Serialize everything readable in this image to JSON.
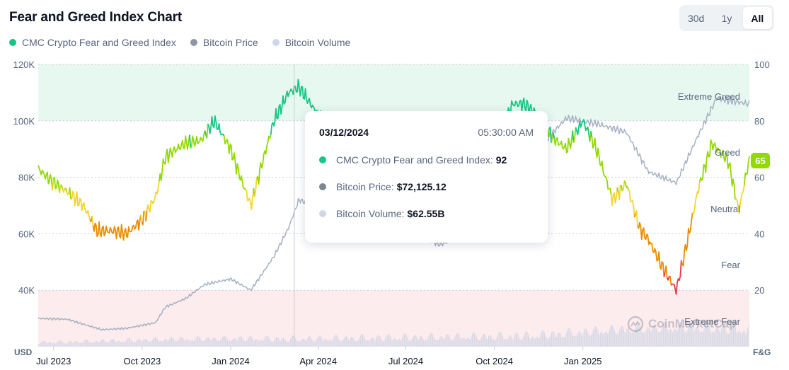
{
  "title": "Fear and Greed Index Chart",
  "range_toggle": {
    "options": [
      "30d",
      "1y",
      "All"
    ],
    "selected": "All"
  },
  "legend": [
    {
      "label": "CMC Crypto Fear and Greed Index",
      "color": "#16c784"
    },
    {
      "label": "Bitcoin Price",
      "color": "#8e96a3"
    },
    {
      "label": "Bitcoin Volume",
      "color": "#cfd6e4"
    }
  ],
  "chart_data": {
    "type": "line",
    "left_axis": {
      "title": "USD",
      "ticks": [
        "40K",
        "60K",
        "80K",
        "100K",
        "120K"
      ],
      "tick_values": [
        40000,
        60000,
        80000,
        100000,
        120000
      ],
      "range": [
        20000,
        120000
      ]
    },
    "right_axis": {
      "title": "F&G",
      "ticks": [
        "20",
        "40",
        "60",
        "80",
        "100"
      ],
      "tick_values": [
        20,
        40,
        60,
        80,
        100
      ],
      "range": [
        0,
        100
      ]
    },
    "x_ticks": [
      "Jul 2023",
      "Oct 2023",
      "Jan 2024",
      "Apr 2024",
      "Jul 2024",
      "Oct 2024",
      "Jan 2025"
    ],
    "zones": [
      "Extreme Greed",
      "Greed",
      "Neutral",
      "Fear",
      "Extreme Fear"
    ],
    "fear_greed_series": {
      "name": "CMC Crypto Fear and Greed Index",
      "dates": [
        "2023-06-15",
        "2023-07-01",
        "2023-07-15",
        "2023-08-01",
        "2023-08-15",
        "2023-09-01",
        "2023-09-15",
        "2023-10-01",
        "2023-10-15",
        "2023-10-25",
        "2023-11-01",
        "2023-11-15",
        "2023-12-01",
        "2023-12-15",
        "2024-01-01",
        "2024-01-10",
        "2024-01-22",
        "2024-02-01",
        "2024-02-15",
        "2024-03-01",
        "2024-03-12",
        "2024-04-01",
        "2024-05-15",
        "2024-06-15",
        "2024-07-05",
        "2024-07-20",
        "2024-08-05",
        "2024-08-20",
        "2024-09-05",
        "2024-09-20",
        "2024-10-05",
        "2024-10-20",
        "2024-11-01",
        "2024-11-15",
        "2024-12-01",
        "2024-12-15",
        "2025-01-01",
        "2025-01-15",
        "2025-02-01",
        "2025-02-15",
        "2025-03-01",
        "2025-03-10",
        "2025-03-25",
        "2025-04-08",
        "2025-04-20",
        "2025-05-01",
        "2025-05-15",
        "2025-06-01",
        "2025-06-12",
        "2025-06-22"
      ],
      "values": [
        63,
        58,
        55,
        50,
        41,
        41,
        40,
        45,
        53,
        67,
        69,
        72,
        73,
        80,
        70,
        61,
        50,
        63,
        80,
        90,
        92,
        82,
        72,
        70,
        62,
        55,
        38,
        45,
        40,
        55,
        75,
        86,
        86,
        82,
        74,
        70,
        80,
        70,
        52,
        58,
        42,
        38,
        28,
        20,
        38,
        56,
        72,
        66,
        48,
        65
      ]
    },
    "price_series": {
      "name": "Bitcoin Price",
      "dates": [
        "2023-06-15",
        "2023-07-15",
        "2023-08-20",
        "2023-09-15",
        "2023-10-15",
        "2023-10-25",
        "2023-11-15",
        "2023-12-05",
        "2024-01-01",
        "2024-01-22",
        "2024-02-15",
        "2024-03-01",
        "2024-03-12",
        "2024-04-01",
        "2024-06-01",
        "2024-08-05",
        "2024-10-01",
        "2024-11-01",
        "2024-11-15",
        "2024-12-15",
        "2025-01-15",
        "2025-02-15",
        "2025-03-10",
        "2025-04-08",
        "2025-05-01",
        "2025-05-20",
        "2025-06-22"
      ],
      "values": [
        30000,
        29700,
        26000,
        26500,
        28500,
        34000,
        37000,
        42000,
        44000,
        40000,
        52000,
        62000,
        72125,
        69000,
        67000,
        56000,
        63000,
        70000,
        90000,
        101000,
        99000,
        96000,
        82000,
        78000,
        95000,
        108000,
        106000
      ]
    },
    "highlight": {
      "date": "03/12/2024",
      "time": "05:30:00 AM",
      "fear_greed": 92,
      "price": "$72,125.12",
      "volume": "$62.55B"
    },
    "current_fear_greed": 65,
    "grid": true
  },
  "tooltip": {
    "date": "03/12/2024",
    "time": "05:30:00 AM",
    "rows": [
      {
        "label": "CMC Crypto Fear and Greed Index:",
        "value": "92",
        "color": "#16c784"
      },
      {
        "label": "Bitcoin Price:",
        "value": "$72,125.12",
        "color": "#7c8594"
      },
      {
        "label": "Bitcoin Volume:",
        "value": "$62.55B",
        "color": "#cfd6e4"
      }
    ]
  },
  "current_badge": "65",
  "watermark": "CoinMarketCap",
  "colors": {
    "extreme_greed": "#16c784",
    "greed": "#93d900",
    "neutral": "#f3d42f",
    "fear": "#ea8c00",
    "extreme_fear": "#ea3943",
    "greed_zone": "#e7f8f0",
    "fear_zone": "#fdeced",
    "price_line": "#a6b0c3",
    "volume": "#cfd6e4"
  }
}
